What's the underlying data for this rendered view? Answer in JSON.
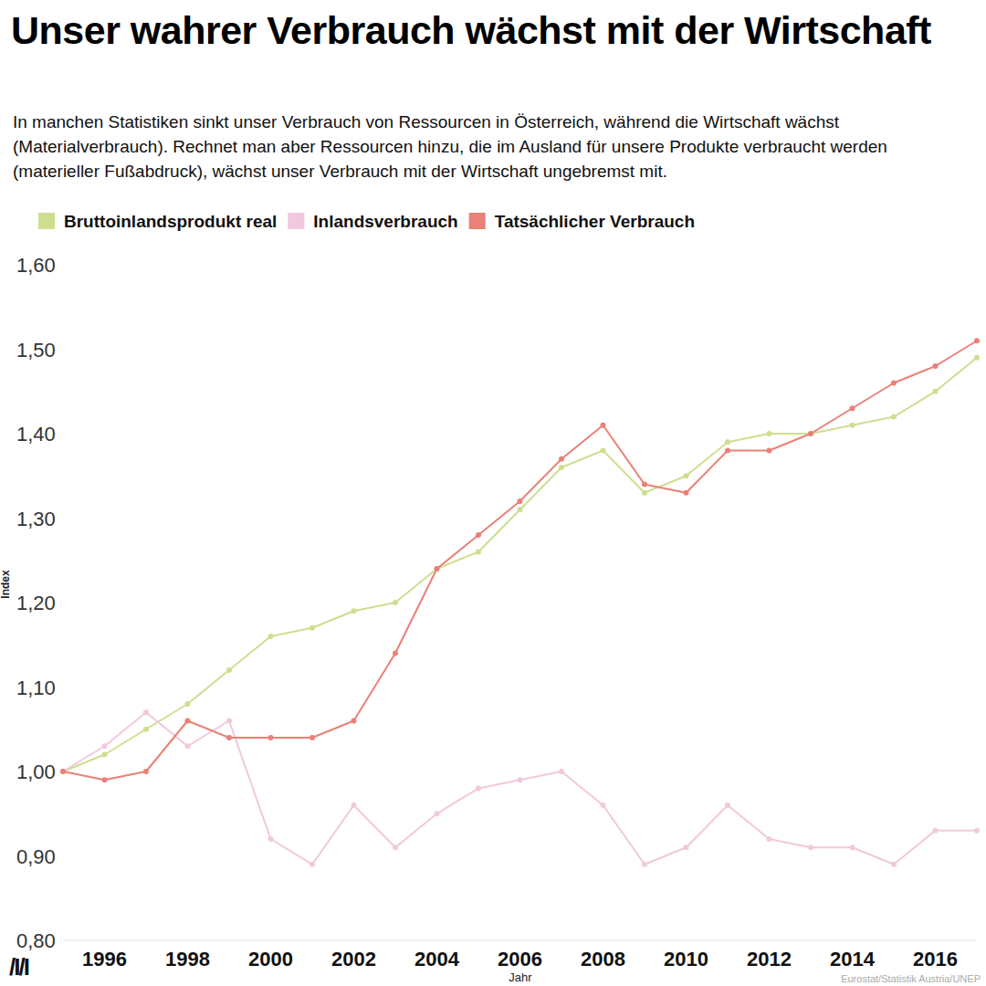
{
  "chart_data": {
    "type": "line",
    "title": "Unser wahrer Verbrauch wächst mit der Wirtschaft",
    "subtitle": "In manchen Statistiken sinkt unser Verbrauch von Ressourcen in Österreich, während die Wirtschaft wächst (Materialverbrauch). Rechnet man aber Ressourcen hinzu, die im Ausland für unsere Produkte verbraucht werden (materieller Fußabdruck), wächst unser Verbrauch mit der Wirtschaft ungebremst mit.",
    "x_label": "Jahr",
    "y_label": "Index",
    "source": "Eurostat/Statistik Austria/UNEP",
    "logo": "/I/I",
    "x": [
      1995,
      1996,
      1997,
      1998,
      1999,
      2000,
      2001,
      2002,
      2003,
      2004,
      2005,
      2006,
      2007,
      2008,
      2009,
      2010,
      2011,
      2012,
      2013,
      2014,
      2015,
      2016,
      2017
    ],
    "xlim": [
      1995,
      2017
    ],
    "xticks": [
      1996,
      1998,
      2000,
      2002,
      2004,
      2006,
      2008,
      2010,
      2012,
      2014,
      2016
    ],
    "ylim": [
      0.8,
      1.6
    ],
    "yticks": [
      {
        "value": 0.8,
        "label": "0,80"
      },
      {
        "value": 0.9,
        "label": "0,90"
      },
      {
        "value": 1.0,
        "label": "1,00"
      },
      {
        "value": 1.1,
        "label": "1,10"
      },
      {
        "value": 1.2,
        "label": "1,20"
      },
      {
        "value": 1.3,
        "label": "1,30"
      },
      {
        "value": 1.4,
        "label": "1,40"
      },
      {
        "value": 1.5,
        "label": "1,50"
      },
      {
        "value": 1.6,
        "label": "1,60"
      }
    ],
    "grid": false,
    "legend": "top",
    "marker": "circle",
    "series": [
      {
        "name": "Bruttoinlandsprodukt real",
        "color": "#cddf8f",
        "values": [
          1.0,
          1.02,
          1.05,
          1.08,
          1.12,
          1.16,
          1.17,
          1.19,
          1.2,
          1.24,
          1.26,
          1.31,
          1.36,
          1.38,
          1.33,
          1.35,
          1.39,
          1.4,
          1.4,
          1.41,
          1.42,
          1.45,
          1.49
        ]
      },
      {
        "name": "Inlandsverbrauch",
        "color": "#f1c8dc",
        "values": [
          1.0,
          1.03,
          1.07,
          1.03,
          1.06,
          0.92,
          0.89,
          0.96,
          0.91,
          0.95,
          0.98,
          0.99,
          1.0,
          0.96,
          0.89,
          0.91,
          0.96,
          0.92,
          0.91,
          0.91,
          0.89,
          0.93,
          0.93
        ]
      },
      {
        "name": "Tatsächlicher Verbrauch",
        "color": "#ea8078",
        "values": [
          1.0,
          0.99,
          1.0,
          1.06,
          1.04,
          1.04,
          1.04,
          1.06,
          1.14,
          1.24,
          1.28,
          1.32,
          1.37,
          1.41,
          1.34,
          1.33,
          1.38,
          1.38,
          1.4,
          1.43,
          1.46,
          1.48,
          1.51
        ]
      }
    ]
  }
}
